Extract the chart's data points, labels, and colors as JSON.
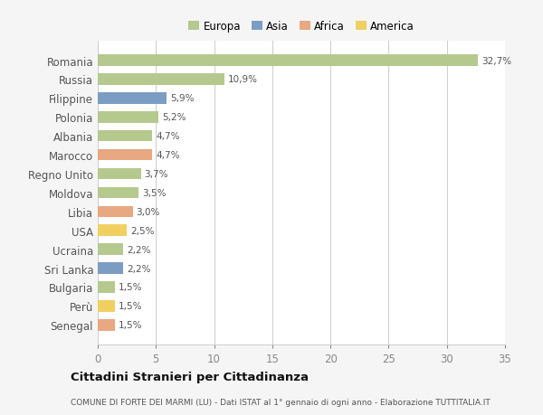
{
  "countries": [
    "Romania",
    "Russia",
    "Filippine",
    "Polonia",
    "Albania",
    "Marocco",
    "Regno Unito",
    "Moldova",
    "Libia",
    "USA",
    "Ucraina",
    "Sri Lanka",
    "Bulgaria",
    "Perù",
    "Senegal"
  ],
  "values": [
    32.7,
    10.9,
    5.9,
    5.2,
    4.7,
    4.7,
    3.7,
    3.5,
    3.0,
    2.5,
    2.2,
    2.2,
    1.5,
    1.5,
    1.5
  ],
  "labels": [
    "32,7%",
    "10,9%",
    "5,9%",
    "5,2%",
    "4,7%",
    "4,7%",
    "3,7%",
    "3,5%",
    "3,0%",
    "2,5%",
    "2,2%",
    "2,2%",
    "1,5%",
    "1,5%",
    "1,5%"
  ],
  "categories": [
    "Europa",
    "Europa",
    "Asia",
    "Europa",
    "Europa",
    "Africa",
    "Europa",
    "Europa",
    "Africa",
    "America",
    "Europa",
    "Asia",
    "Europa",
    "America",
    "Africa"
  ],
  "colors": {
    "Europa": "#b5c98e",
    "Asia": "#7b9dc4",
    "Africa": "#e8a882",
    "America": "#f0d060"
  },
  "legend_labels": [
    "Europa",
    "Asia",
    "Africa",
    "America"
  ],
  "legend_colors": [
    "#b5c98e",
    "#7b9dc4",
    "#e8a882",
    "#f0d060"
  ],
  "title": "Cittadini Stranieri per Cittadinanza",
  "subtitle": "COMUNE DI FORTE DEI MARMI (LU) - Dati ISTAT al 1° gennaio di ogni anno - Elaborazione TUTTITALIA.IT",
  "xlim": [
    0,
    35
  ],
  "xticks": [
    0,
    5,
    10,
    15,
    20,
    25,
    30,
    35
  ],
  "background_color": "#f5f5f5",
  "plot_background": "#ffffff"
}
